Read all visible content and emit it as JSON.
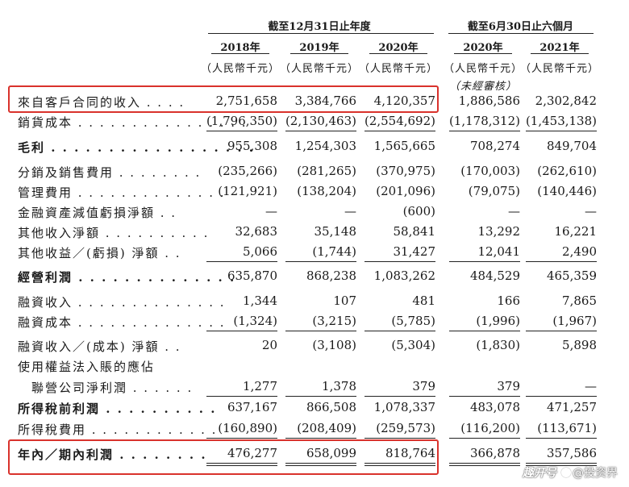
{
  "headers": {
    "group1": "截至12月31日止年度",
    "group2": "截至6月30日止六個月",
    "years": [
      "2018年",
      "2019年",
      "2020年",
      "2020年",
      "2021年"
    ],
    "unit": "（人民幣千元）",
    "unaudited": "（未經審核）"
  },
  "rows": [
    {
      "label": "來自客戶合同的收入 . . . .",
      "bold": false,
      "values": [
        "2,751,658",
        "3,384,766",
        "4,120,357",
        "1,886,586",
        "2,302,842"
      ]
    },
    {
      "label": "銷貨成本 . . . . . . . . . . . . . . . .",
      "bold": false,
      "values": [
        "(1,796,350)",
        "(2,130,463)",
        "(2,554,692)",
        "(1,178,312)",
        "(1,453,138)"
      ]
    },
    {
      "label": "毛利 . . . . . . . . . . . . . . . . . .",
      "bold": true,
      "values": [
        "955,308",
        "1,254,303",
        "1,565,665",
        "708,274",
        "849,704"
      ]
    },
    {
      "label": "分銷及銷售費用 . . . . . . . .",
      "bold": false,
      "values": [
        "(235,266)",
        "(281,265)",
        "(370,975)",
        "(170,003)",
        "(262,610)"
      ]
    },
    {
      "label": "管理費用 . . . . . . . . . . . . . .",
      "bold": false,
      "values": [
        "(121,921)",
        "(138,204)",
        "(201,096)",
        "(79,075)",
        "(140,446)"
      ]
    },
    {
      "label": "金融資產減值虧損淨額 . .",
      "bold": false,
      "values": [
        "—",
        "—",
        "(600)",
        "—",
        "—"
      ]
    },
    {
      "label": "其他收入淨額 . . . . . . . . . .",
      "bold": false,
      "values": [
        "32,683",
        "35,148",
        "58,841",
        "13,292",
        "16,221"
      ]
    },
    {
      "label": "其他收益／(虧損) 淨額 . .",
      "bold": false,
      "values": [
        "5,066",
        "(1,744)",
        "31,427",
        "12,041",
        "2,490"
      ]
    },
    {
      "label": "經營利潤 . . . . . . . . . . . . . .",
      "bold": true,
      "values": [
        "635,870",
        "868,238",
        "1,083,262",
        "484,529",
        "465,359"
      ]
    },
    {
      "label": "融資收入 . . . . . . . . . . . . . .",
      "bold": false,
      "values": [
        "1,344",
        "107",
        "481",
        "166",
        "7,865"
      ]
    },
    {
      "label": "融資成本 . . . . . . . . . . . . . .",
      "bold": false,
      "values": [
        "(1,324)",
        "(3,215)",
        "(5,785)",
        "(1,996)",
        "(1,967)"
      ]
    },
    {
      "label": "融資收入／(成本) 淨額 . .",
      "bold": false,
      "values": [
        "20",
        "(3,108)",
        "(5,304)",
        "(1,830)",
        "5,898"
      ]
    },
    {
      "label": "使用權益法入賬的應佔",
      "bold": false,
      "values": [
        "",
        "",
        "",
        "",
        ""
      ]
    },
    {
      "label": "　聯營公司淨利潤 . . . . . .",
      "bold": false,
      "values": [
        "1,277",
        "1,378",
        "379",
        "379",
        "—"
      ]
    },
    {
      "label": "所得稅前利潤 . . . . . . . . . .",
      "bold": true,
      "values": [
        "637,167",
        "866,508",
        "1,078,337",
        "483,078",
        "471,257"
      ]
    },
    {
      "label": "所得稅費用 . . . . . . . . . . . .",
      "bold": false,
      "values": [
        "(160,890)",
        "(208,409)",
        "(259,573)",
        "(116,200)",
        "(113,671)"
      ]
    },
    {
      "label": "年內／期內利潤 . . . . . . . .",
      "bold": true,
      "values": [
        "476,277",
        "658,099",
        "818,764",
        "366,878",
        "357,586"
      ]
    }
  ],
  "watermark": {
    "left": "趣开号",
    "right": "@投资界"
  }
}
